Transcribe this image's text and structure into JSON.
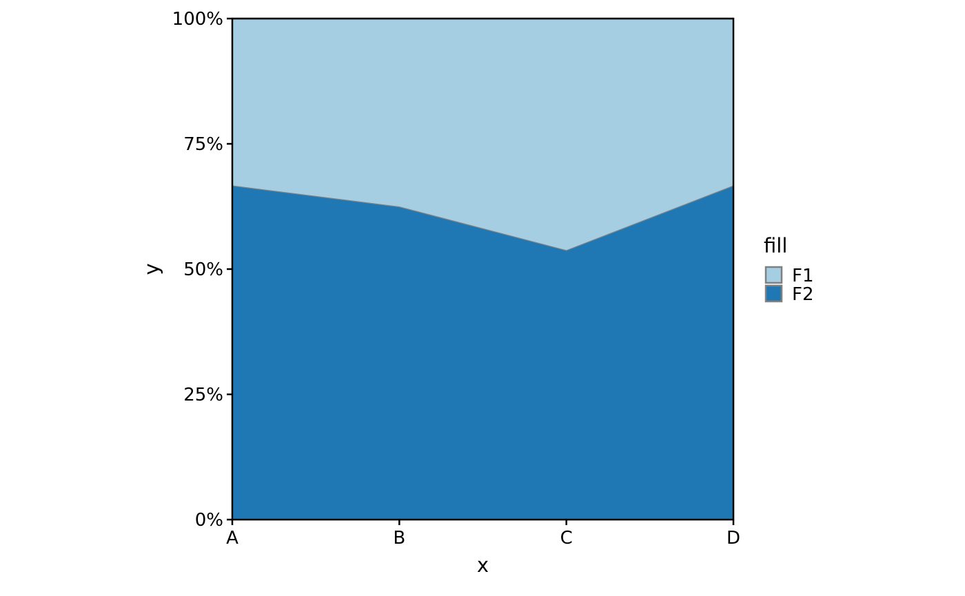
{
  "chart_data": {
    "type": "area",
    "stacked": true,
    "normalized": true,
    "categories": [
      "A",
      "B",
      "C",
      "D"
    ],
    "series": [
      {
        "name": "F1",
        "values": [
          33.3,
          37.5,
          46.2,
          33.3
        ],
        "color": "#a6cee3"
      },
      {
        "name": "F2",
        "values": [
          66.7,
          62.5,
          53.8,
          66.7
        ],
        "color": "#1f78b4"
      }
    ],
    "xlabel": "x",
    "ylabel": "y",
    "ylim": [
      0,
      100
    ],
    "yticks": [
      "0%",
      "25%",
      "50%",
      "75%",
      "100%"
    ],
    "outline_color": "#808080",
    "grid": false,
    "legend": {
      "title": "fill",
      "position": "right"
    }
  }
}
